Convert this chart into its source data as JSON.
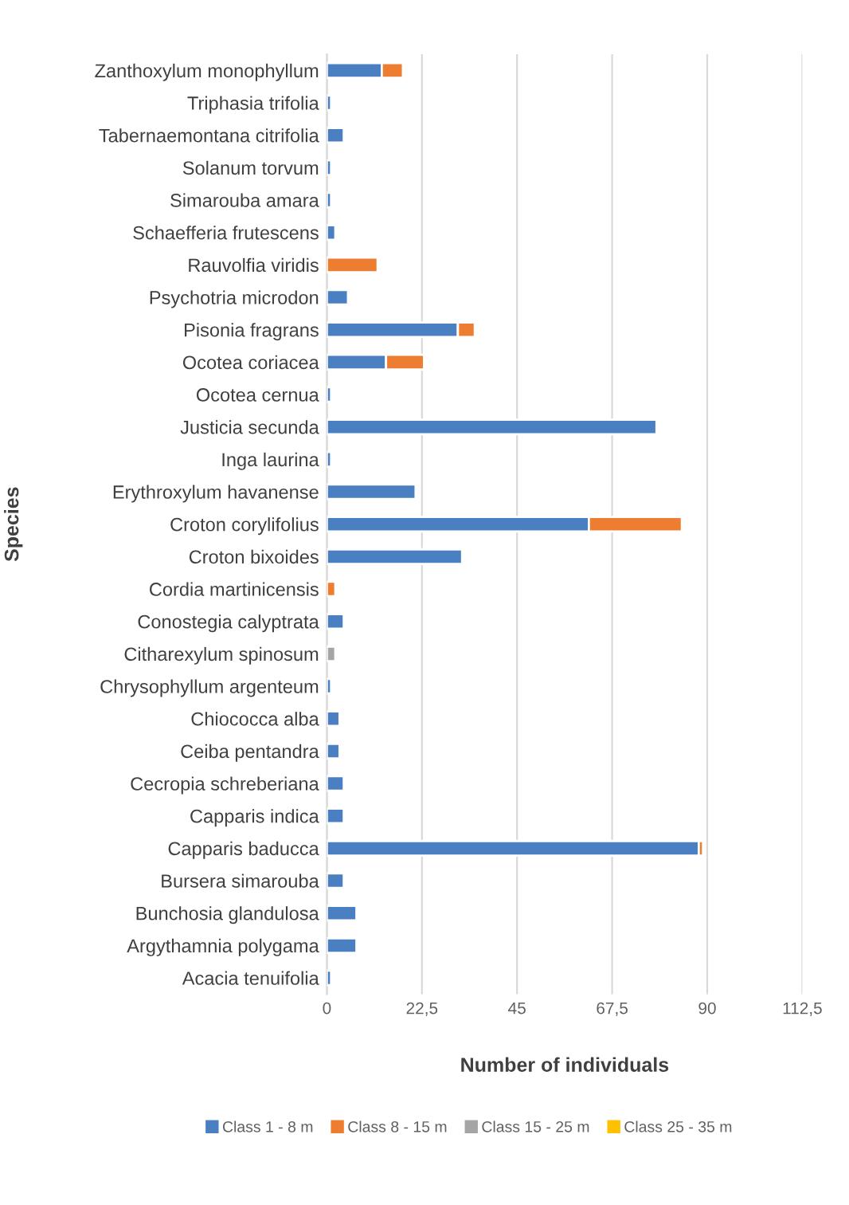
{
  "chart_data": {
    "type": "bar",
    "orientation": "horizontal",
    "stacked": true,
    "categories": [
      "Zanthoxylum monophyllum",
      "Triphasia trifolia",
      "Tabernaemontana citrifolia",
      "Solanum torvum",
      "Simarouba amara",
      "Schaefferia frutescens",
      "Rauvolfia viridis",
      "Psychotria microdon",
      "Pisonia fragrans",
      "Ocotea coriacea",
      "Ocotea cernua",
      "Justicia secunda",
      "Inga laurina",
      "Erythroxylum havanense",
      "Croton corylifolius",
      "Croton bixoides",
      "Cordia martinicensis",
      "Conostegia calyptrata",
      "Citharexylum spinosum",
      "Chrysophyllum argenteum",
      "Chiococca alba",
      "Ceiba pentandra",
      "Cecropia schreberiana",
      "Capparis indica",
      "Capparis baducca",
      "Bursera simarouba",
      "Bunchosia glandulosa",
      "Argythamnia polygama",
      "Acacia tenuifolia"
    ],
    "series": [
      {
        "name": "Class 1 - 8 m",
        "color": "#4a7fc1",
        "values": [
          13,
          1,
          4,
          1,
          1,
          2,
          null,
          5,
          31,
          14,
          1,
          78,
          1,
          21,
          62,
          32,
          null,
          4,
          null,
          1,
          3,
          3,
          4,
          4,
          88,
          4,
          7,
          7,
          1
        ]
      },
      {
        "name": "Class 8 - 15 m",
        "color": "#ed7d31",
        "values": [
          5,
          null,
          null,
          null,
          null,
          null,
          12,
          null,
          4,
          9,
          null,
          null,
          null,
          null,
          22,
          null,
          2,
          null,
          null,
          null,
          null,
          null,
          null,
          null,
          1,
          null,
          null,
          null,
          null
        ]
      },
      {
        "name": "Class 15 - 25 m",
        "color": "#a5a5a5",
        "values": [
          null,
          null,
          null,
          null,
          null,
          null,
          null,
          null,
          null,
          null,
          null,
          null,
          null,
          null,
          null,
          null,
          null,
          null,
          2,
          null,
          null,
          null,
          null,
          null,
          null,
          null,
          null,
          null,
          null
        ]
      },
      {
        "name": "Class 25 - 35 m",
        "color": "#ffc000",
        "values": [
          null,
          null,
          null,
          null,
          null,
          null,
          null,
          null,
          null,
          null,
          null,
          null,
          null,
          null,
          null,
          null,
          null,
          null,
          null,
          null,
          null,
          null,
          null,
          null,
          null,
          null,
          null,
          null,
          null
        ]
      }
    ],
    "xlim": [
      0,
      112.5
    ],
    "xticks": [
      0,
      {
        "value": 22.5,
        "label": "22,5"
      },
      45,
      {
        "value": 67.5,
        "label": "67,5"
      },
      90,
      {
        "value": 112.5,
        "label": "112,5"
      }
    ],
    "xlabel": "Number of individuals",
    "ylabel": "Species",
    "grid": "x",
    "legend": "bottom"
  }
}
